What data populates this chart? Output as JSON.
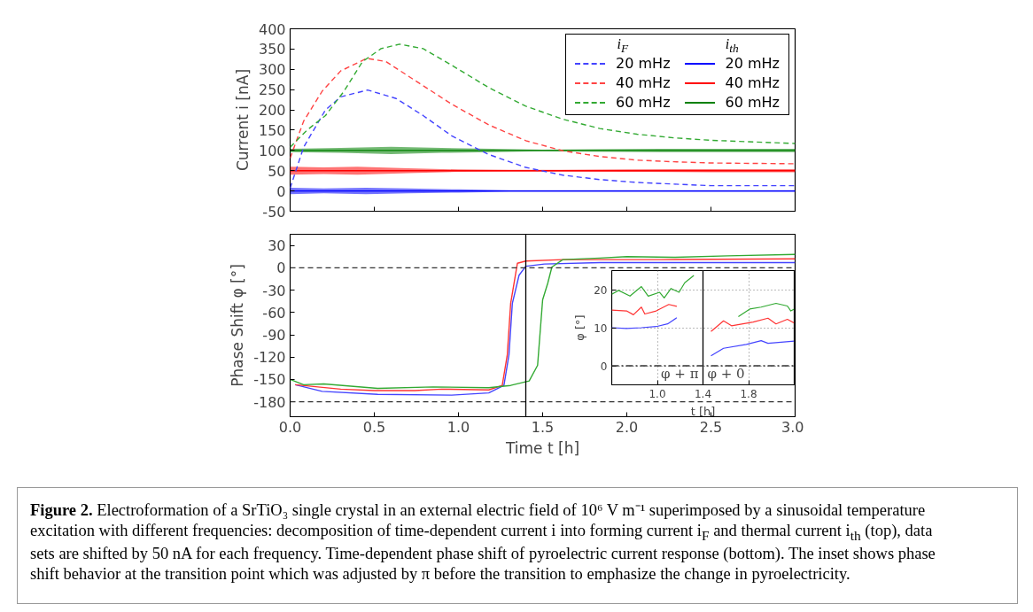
{
  "chart_data": [
    {
      "type": "line",
      "ylabel": "Current i [nA]",
      "xlim": [
        0,
        3
      ],
      "ylim": [
        -50,
        400
      ],
      "xticks": [
        0,
        0.5,
        1,
        1.5,
        2,
        2.5,
        3
      ],
      "yticks": [
        -50,
        0,
        50,
        100,
        150,
        200,
        250,
        300,
        350,
        400
      ],
      "tick_labels": "y",
      "grid": false,
      "legend": "top right",
      "legend_title": [
        "i$_{F}$",
        "i$_{th}$"
      ],
      "annotations": [
        "Figure 2. Electroformation of a SrTiO₃ single crystal in an external electric field of 10⁶ V m⁻¹ superimposed by a sinusoidal temperature excitation with different frequencies: decomposition of time-dependent current i into forming current i$_{F}$ and thermal current i$_{th}$ (top), data sets are shifted by 50 nA for each frequency. Time-dependent phase shift of pyroelectric current response (bottom). The inset shows phase shift behavior at the transition point which was adjusted by π before the transition to emphasize the change in pyroelectricity."
      ],
      "x": [
        0,
        0.08,
        0.21,
        0.3,
        0.46,
        0.63,
        0.79,
        0.96,
        1.18,
        1.4,
        1.62,
        1.84,
        2.06,
        2.28,
        2.5,
        3.0
      ],
      "series": [
        {
          "name": "20 mHz",
          "color": "#4444ff",
          "line_style": "dashed",
          "values": [
            7,
            108,
            200,
            232,
            249,
            228,
            186,
            136,
            90,
            58,
            39,
            28,
            21,
            17,
            13,
            13
          ]
        },
        {
          "name": "40 mHz",
          "color": "#ff4444",
          "line_style": "dashed",
          "x": [
            0,
            0.08,
            0.19,
            0.3,
            0.455,
            0.57,
            0.74,
            0.96,
            1.18,
            1.4,
            1.62,
            1.84,
            2.06,
            2.28,
            2.5,
            3.0
          ],
          "values": [
            81,
            172,
            246,
            296,
            327,
            319,
            273,
            214,
            163,
            124,
            99,
            85,
            76,
            72,
            69,
            67
          ]
        },
        {
          "name": "60 mHz",
          "color": "#33aa33",
          "line_style": "dashed",
          "x": [
            0,
            0.1,
            0.21,
            0.32,
            0.43,
            0.54,
            0.65,
            0.79,
            0.96,
            1.18,
            1.4,
            1.62,
            1.84,
            2.06,
            2.28,
            2.5,
            3.0
          ],
          "values": [
            108,
            150,
            186,
            246,
            319,
            351,
            362,
            351,
            310,
            255,
            209,
            177,
            154,
            140,
            131,
            125,
            117
          ]
        },
        {
          "name": "20 mHz",
          "color": "#0000ff",
          "line_style": "solid",
          "x": [
            0,
            0.2,
            0.45,
            0.7,
            1.0,
            1.3,
            1.6,
            2.0,
            2.5,
            3.0
          ],
          "values": [
            0,
            0,
            0,
            0,
            0,
            0,
            0,
            0,
            0,
            0
          ],
          "lower": [
            -8,
            -6,
            -8,
            -6,
            -4,
            -2,
            -2,
            -2,
            -2,
            -2
          ],
          "upper": [
            8,
            6,
            8,
            6,
            4,
            2,
            2,
            2,
            2,
            2
          ]
        },
        {
          "name": "40 mHz",
          "color": "#ff0000",
          "line_style": "solid",
          "x": [
            0,
            0.2,
            0.4,
            0.7,
            1.0,
            1.3,
            1.6,
            2.0,
            2.5,
            3.0
          ],
          "values": [
            50,
            50,
            50,
            50,
            50,
            50,
            50,
            50,
            50,
            50
          ],
          "lower": [
            40,
            42,
            40,
            44,
            47,
            48,
            48,
            47,
            46,
            46
          ],
          "upper": [
            60,
            58,
            60,
            56,
            53,
            52,
            52,
            53,
            54,
            54
          ]
        },
        {
          "name": "60 mHz",
          "color": "#008000",
          "line_style": "solid",
          "x": [
            0,
            0.3,
            0.6,
            0.9,
            1.2,
            1.5,
            1.8,
            2.2,
            2.6,
            3.0
          ],
          "values": [
            100,
            100,
            100,
            100,
            100,
            100,
            100,
            100,
            100,
            100
          ],
          "lower": [
            96,
            94,
            91,
            94,
            96,
            98,
            97,
            96,
            96,
            96
          ],
          "upper": [
            104,
            106,
            109,
            106,
            104,
            102,
            103,
            104,
            104,
            104
          ]
        }
      ]
    },
    {
      "type": "line",
      "xlabel": "Time t [h]",
      "ylabel": "Phase Shift φ [°]",
      "xlim": [
        0,
        3
      ],
      "ylim": [
        -200,
        45
      ],
      "xticks": [
        {
          "value": 0,
          "label": "0.0"
        },
        0.5,
        {
          "value": 1,
          "label": "1.0"
        },
        1.5,
        {
          "value": 2,
          "label": "2.0"
        },
        2.5,
        {
          "value": 3,
          "label": "3.0"
        }
      ],
      "yticks": [
        -180,
        -150,
        -120,
        -90,
        -60,
        -30,
        0,
        30
      ],
      "grid": false,
      "ref_lines": [
        {
          "axis": "y",
          "value": 0,
          "color": "#333333",
          "line_style": "dashed"
        },
        {
          "axis": "y",
          "value": -180,
          "color": "#333333",
          "line_style": "dashed"
        },
        {
          "axis": "x",
          "value": 1.4,
          "color": "#000000",
          "line_style": "solid"
        }
      ],
      "series": [
        {
          "color": "#4444ff",
          "x": [
            0.03,
            0.19,
            0.52,
            0.96,
            1.18,
            1.27,
            1.3,
            1.32,
            1.36,
            1.4,
            1.51,
            1.84,
            3.0
          ],
          "values": [
            -157,
            -166,
            -170,
            -171,
            -168,
            -158,
            -117,
            -48,
            -10,
            2,
            5,
            7,
            7
          ]
        },
        {
          "color": "#ff3333",
          "x": [
            0.03,
            0.3,
            0.5,
            0.74,
            0.9,
            1.18,
            1.26,
            1.29,
            1.31,
            1.35,
            1.4,
            1.62,
            2.2,
            3.0
          ],
          "values": [
            -157,
            -163,
            -165,
            -165,
            -163,
            -164,
            -158,
            -117,
            -48,
            6,
            9,
            11,
            11,
            12
          ]
        },
        {
          "color": "#33aa33",
          "x": [
            0,
            0.08,
            0.2,
            0.52,
            0.85,
            1.18,
            1.31,
            1.42,
            1.47,
            1.5,
            1.53,
            1.555,
            1.62,
            1.84,
            2.0,
            2.28,
            2.6,
            3.0
          ],
          "values": [
            -150,
            -157,
            -156,
            -162,
            -160,
            -161,
            -158,
            -152,
            -131,
            -43,
            -21,
            1,
            11,
            13,
            15,
            14,
            16,
            18
          ]
        }
      ]
    },
    {
      "type": "line",
      "xlabel": "t [h]",
      "ylabel": "φ [°]",
      "xlim": [
        0.6,
        2.2
      ],
      "ylim": [
        -5,
        25
      ],
      "xticks": [
        {
          "value": 1.0,
          "label": "1.0"
        },
        1.4,
        1.8
      ],
      "yticks": [
        0,
        10,
        20
      ],
      "grid": true,
      "ref_lines": [
        {
          "axis": "x",
          "value": 1.4,
          "color": "#000000",
          "line_style": "solid"
        },
        {
          "axis": "y",
          "value": 0,
          "color": "#333333",
          "line_style": "dashdot"
        }
      ],
      "annotations": [
        "φ + π",
        "φ + 0"
      ],
      "series": [
        {
          "color": "#4444ff",
          "x": [
            0.6,
            0.73,
            0.86,
            0.99,
            1.09,
            1.17
          ],
          "values": [
            10.0,
            9.8,
            10.0,
            10.3,
            11.0,
            12.6
          ]
        },
        {
          "color": "#ff3333",
          "x": [
            0.6,
            0.73,
            0.79,
            0.86,
            0.89,
            0.99,
            1.1,
            1.17
          ],
          "values": [
            14.6,
            14.4,
            13.4,
            15.4,
            13.6,
            14.4,
            16.1,
            15.6
          ]
        },
        {
          "color": "#33aa33",
          "x": [
            0.6,
            0.66,
            0.76,
            0.86,
            0.92,
            1.02,
            1.06,
            1.12,
            1.19,
            1.24,
            1.32
          ],
          "values": [
            18.8,
            19.8,
            18.3,
            20.8,
            18.3,
            19.3,
            17.8,
            20.3,
            19.3,
            21.8,
            23.7
          ]
        },
        {
          "color": "#4444ff",
          "x": [
            1.47,
            1.58,
            1.78,
            1.91,
            1.97,
            2.2
          ],
          "values": [
            2.6,
            4.6,
            5.6,
            6.6,
            5.9,
            6.5
          ]
        },
        {
          "color": "#ff3333",
          "x": [
            1.47,
            1.51,
            1.58,
            1.65,
            1.84,
            1.97,
            2.04,
            2.14,
            2.2
          ],
          "values": [
            9.0,
            10.0,
            11.8,
            10.5,
            11.5,
            12.5,
            11.0,
            12.2,
            11.2
          ]
        },
        {
          "color": "#33aa33",
          "x": [
            1.71,
            1.81,
            1.91,
            2.04,
            2.14,
            2.17,
            2.2
          ],
          "values": [
            12.9,
            14.9,
            15.4,
            16.4,
            15.7,
            14.4,
            14.9
          ]
        }
      ]
    }
  ]
}
